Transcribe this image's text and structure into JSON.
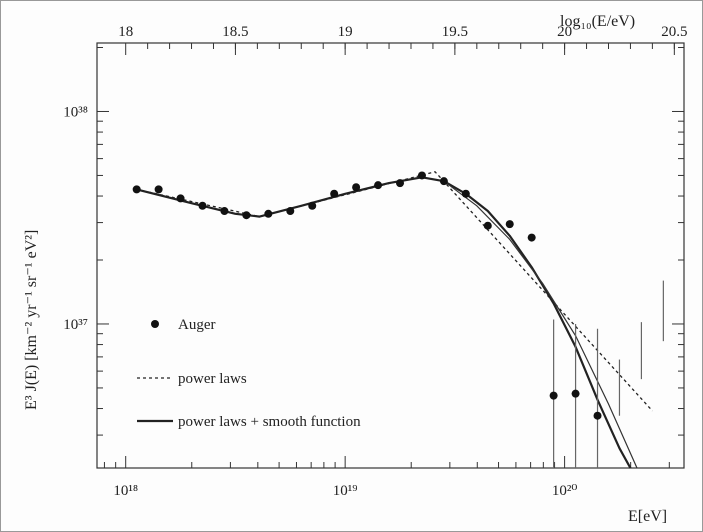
{
  "chart_data": {
    "type": "scatter",
    "xscale": "log",
    "yscale": "log",
    "xlim_eV": [
      7.4e+17,
      3.5e+20
    ],
    "ylim": [
      2.1e+36,
      2.1e+38
    ],
    "xlabel": "E[eV]",
    "ylabel": "E³ J(E) [km⁻² yr⁻¹ sr⁻¹ eV²]",
    "top_axis_label": "log₁₀(E/eV)",
    "x_ticks": [
      {
        "value": 1e+18,
        "label": "10¹⁸"
      },
      {
        "value": 1e+19,
        "label": "10¹⁹"
      },
      {
        "value": 1e+20,
        "label": "10²⁰"
      }
    ],
    "y_ticks": [
      {
        "value": 1e+37,
        "label": "10³⁷"
      },
      {
        "value": 1e+38,
        "label": "10³⁸"
      }
    ],
    "top_ticks": [
      {
        "value": 18,
        "label": "18"
      },
      {
        "value": 18.5,
        "label": "18.5"
      },
      {
        "value": 19,
        "label": "19"
      },
      {
        "value": 19.5,
        "label": "19.5"
      },
      {
        "value": 20,
        "label": "20"
      },
      {
        "value": 20.5,
        "label": "20.5"
      }
    ],
    "series": [
      {
        "name": "Auger",
        "points": [
          {
            "log_e": 18.05,
            "y": 4.3e+37
          },
          {
            "log_e": 18.15,
            "y": 4.3e+37
          },
          {
            "log_e": 18.25,
            "y": 3.9e+37
          },
          {
            "log_e": 18.35,
            "y": 3.6e+37
          },
          {
            "log_e": 18.45,
            "y": 3.4e+37
          },
          {
            "log_e": 18.55,
            "y": 3.25e+37
          },
          {
            "log_e": 18.65,
            "y": 3.3e+37
          },
          {
            "log_e": 18.75,
            "y": 3.4e+37
          },
          {
            "log_e": 18.85,
            "y": 3.6e+37
          },
          {
            "log_e": 18.95,
            "y": 4.1e+37
          },
          {
            "log_e": 19.05,
            "y": 4.4e+37
          },
          {
            "log_e": 19.15,
            "y": 4.5e+37
          },
          {
            "log_e": 19.25,
            "y": 4.6e+37
          },
          {
            "log_e": 19.35,
            "y": 5e+37
          },
          {
            "log_e": 19.45,
            "y": 4.7e+37
          },
          {
            "log_e": 19.55,
            "y": 4.1e+37
          },
          {
            "log_e": 19.65,
            "y": 2.9e+37
          },
          {
            "log_e": 19.75,
            "y": 2.95e+37
          },
          {
            "log_e": 19.85,
            "y": 2.55e+37
          },
          {
            "log_e": 19.95,
            "y": 4.6e+36,
            "y_hi": 1.05e+37,
            "y_lo": 2.1e+36
          },
          {
            "log_e": 20.05,
            "y": 4.7e+36,
            "y_hi": 1e+37,
            "y_lo": 2.1e+36
          },
          {
            "log_e": 20.15,
            "y": 3.7e+36,
            "y_hi": 9.5e+36,
            "y_lo": 2.1e+36
          },
          {
            "log_e": 20.25,
            "y": null,
            "y_hi": 6.8e+36,
            "y_lo": 3.7e+36
          },
          {
            "log_e": 20.35,
            "y": null,
            "y_hi": 1.02e+37,
            "y_lo": 5.5e+36
          },
          {
            "log_e": 20.45,
            "y": null,
            "y_hi": 1.6e+37,
            "y_lo": 8.3e+36
          }
        ]
      },
      {
        "name": "power laws",
        "style": "dashed",
        "points": [
          {
            "log_e": 18.05,
            "y": 4.3e+37
          },
          {
            "log_e": 18.61,
            "y": 3.2e+37
          },
          {
            "log_e": 19.41,
            "y": 5.2e+37
          },
          {
            "log_e": 20.4,
            "y": 3.9e+36
          }
        ]
      },
      {
        "name": "power laws + smooth function",
        "style": "solid",
        "points": [
          {
            "log_e": 18.05,
            "y": 4.3e+37
          },
          {
            "log_e": 18.3,
            "y": 3.7e+37
          },
          {
            "log_e": 18.5,
            "y": 3.3e+37
          },
          {
            "log_e": 18.61,
            "y": 3.2e+37
          },
          {
            "log_e": 18.8,
            "y": 3.6e+37
          },
          {
            "log_e": 19.0,
            "y": 4.1e+37
          },
          {
            "log_e": 19.2,
            "y": 4.6e+37
          },
          {
            "log_e": 19.35,
            "y": 4.9e+37
          },
          {
            "log_e": 19.45,
            "y": 4.7e+37
          },
          {
            "log_e": 19.55,
            "y": 4.1e+37
          },
          {
            "log_e": 19.65,
            "y": 3.4e+37
          },
          {
            "log_e": 19.75,
            "y": 2.6e+37
          },
          {
            "log_e": 19.85,
            "y": 1.85e+37
          },
          {
            "log_e": 19.95,
            "y": 1.25e+37
          },
          {
            "log_e": 20.05,
            "y": 7.8e+36
          },
          {
            "log_e": 20.15,
            "y": 4.4e+36
          },
          {
            "log_e": 20.25,
            "y": 2.6e+36
          },
          {
            "log_e": 20.3,
            "y": 2.1e+36
          }
        ]
      }
    ],
    "extra_curve": {
      "style": "solid-thin",
      "points": [
        {
          "log_e": 19.45,
          "y": 4.7e+37
        },
        {
          "log_e": 19.6,
          "y": 3.6e+37
        },
        {
          "log_e": 19.75,
          "y": 2.5e+37
        },
        {
          "log_e": 19.9,
          "y": 1.55e+37
        },
        {
          "log_e": 20.05,
          "y": 8.8e+36
        },
        {
          "log_e": 20.2,
          "y": 4.2e+36
        },
        {
          "log_e": 20.33,
          "y": 2.1e+36
        }
      ]
    },
    "legend": {
      "placement": "bottom-left",
      "entries": [
        {
          "label": "Auger",
          "marker": "dot"
        },
        {
          "label": "power laws",
          "marker": "dashed"
        },
        {
          "label": "power laws + smooth function",
          "marker": "solid"
        }
      ]
    }
  }
}
